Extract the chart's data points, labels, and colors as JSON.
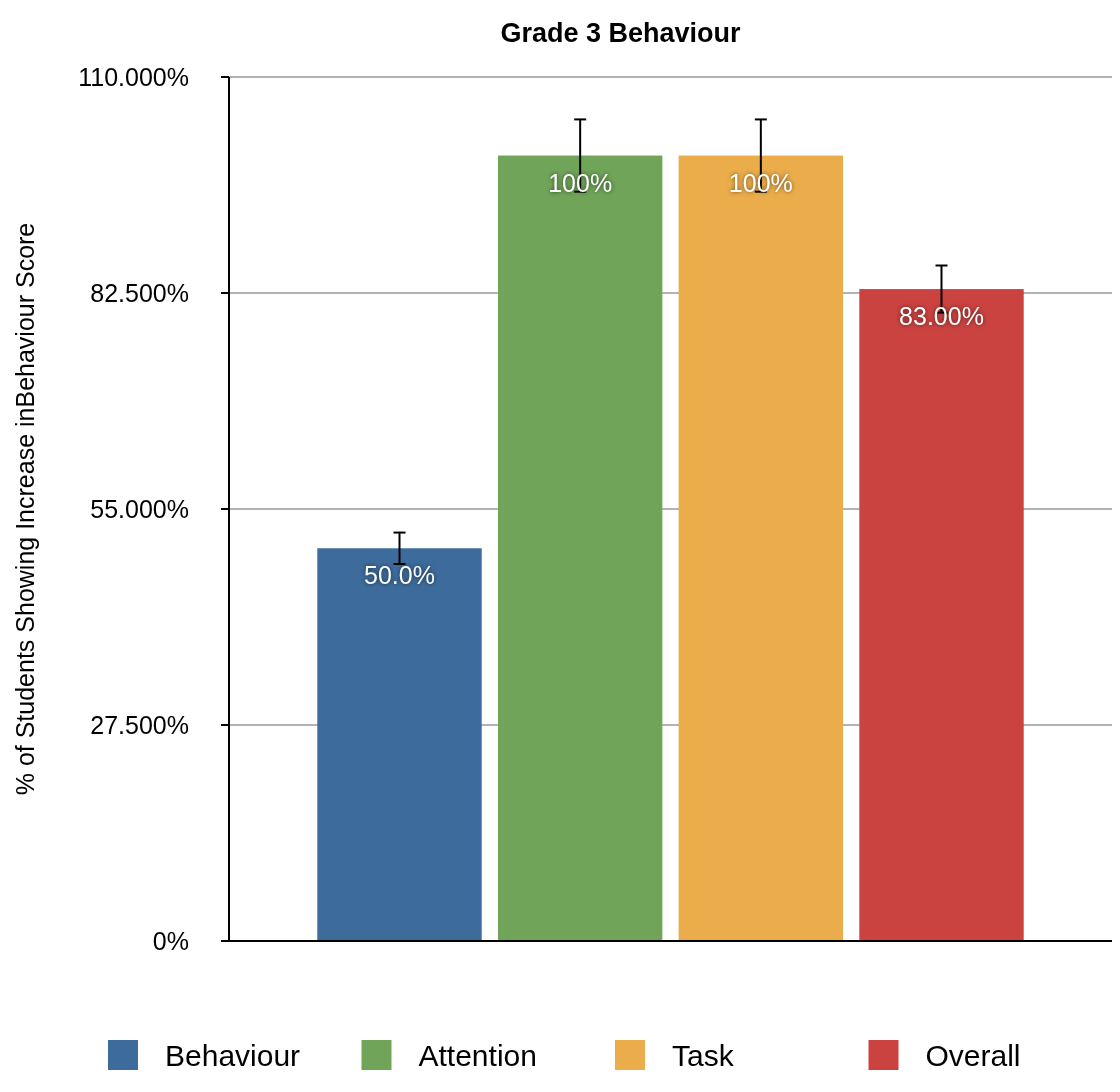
{
  "chart_data": {
    "type": "bar",
    "title": "Grade 3 Behaviour",
    "ylabel": "% of Students Showing Increase inBehaviour  Score",
    "categories": [
      null
    ],
    "series": [
      {
        "name": "Behaviour",
        "color": "#3d6c9c",
        "values": [
          50.0
        ],
        "errors": [
          2.0
        ],
        "value_labels": [
          "50.0%"
        ]
      },
      {
        "name": "Attention",
        "color": "#6fa459",
        "values": [
          100
        ],
        "errors": [
          4.6
        ],
        "value_labels": [
          "100%"
        ]
      },
      {
        "name": "Task",
        "color": "#ebad4b",
        "values": [
          100
        ],
        "errors": [
          4.6
        ],
        "value_labels": [
          "100%"
        ]
      },
      {
        "name": "Overall",
        "color": "#cb4340",
        "values": [
          83.0
        ],
        "errors": [
          3.0
        ],
        "value_labels": [
          "83.00%"
        ]
      }
    ],
    "ylim": [
      0,
      110
    ],
    "yticks": [
      {
        "value": 0,
        "label": "0%"
      },
      {
        "value": 27.5,
        "label": "27.500%"
      },
      {
        "value": 55,
        "label": "55.000%"
      },
      {
        "value": 82.5,
        "label": "82.500%"
      },
      {
        "value": 110,
        "label": "110.000%"
      }
    ],
    "grid": "y",
    "legend": "bottom"
  }
}
